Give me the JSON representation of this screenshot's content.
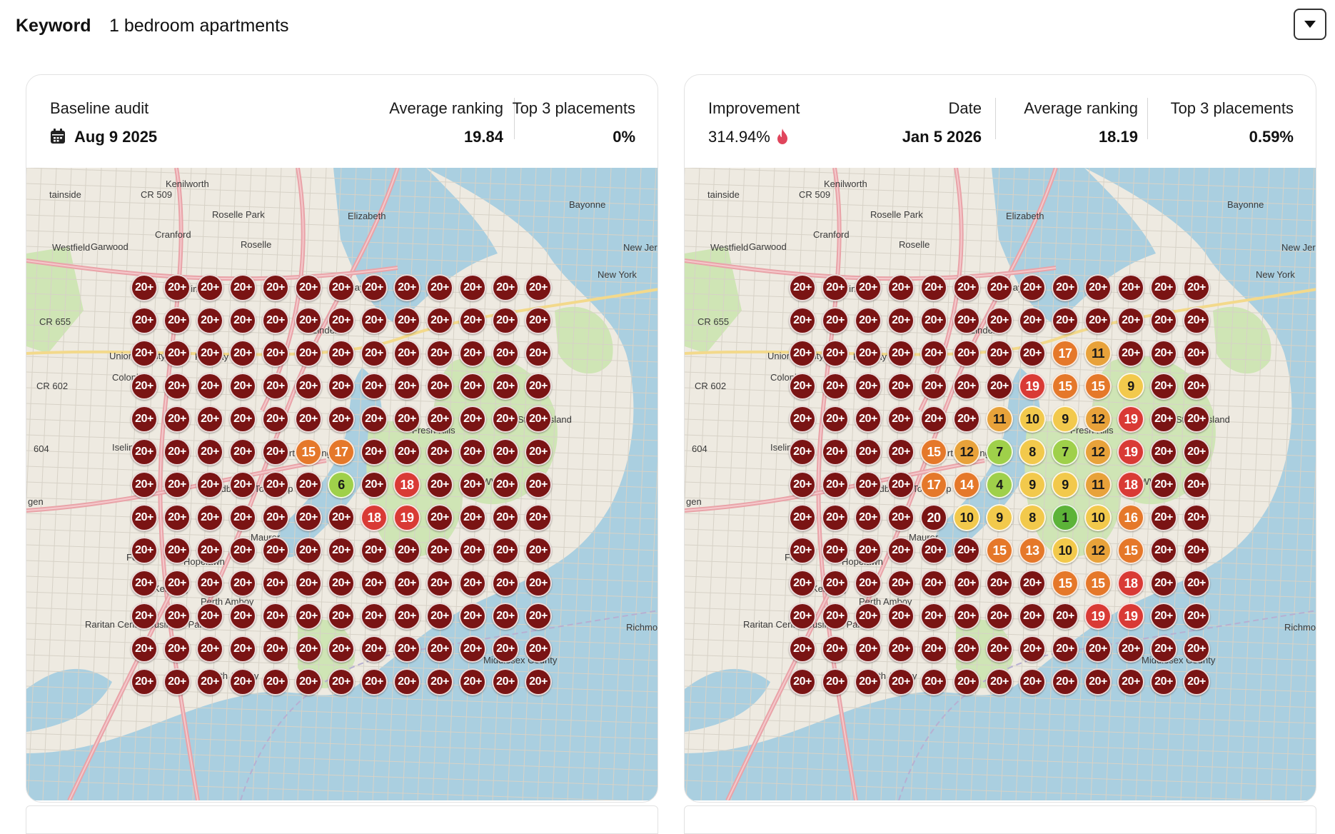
{
  "keyword": {
    "label": "Keyword",
    "value": "1 bedroom apartments"
  },
  "colors": {
    "r20": "#7a1414",
    "r18_19": "#d93a35",
    "r13_17": "#e5782a",
    "r11_12": "#e8a23a",
    "r8_10": "#f2c94c",
    "r4_7": "#9fd04a",
    "r1_3": "#5cb338",
    "water": "#aacfe0",
    "land": "#eeeae1",
    "park": "#cfe5b5"
  },
  "map_labels": [
    "Kenilworth",
    "Roselle Park",
    "Elizabeth",
    "Bayonne",
    "Cranford",
    "Roselle",
    "Westfield",
    "Garwood",
    "Winfield",
    "Clark",
    "Rahway",
    "Colonia",
    "Iselin",
    "Port Reading",
    "Woodbridge Township",
    "Staten Island",
    "Fresh Kills",
    "Maurer",
    "Fords",
    "Hopelawn",
    "Keasbey",
    "Perth Amboy",
    "South Amboy",
    "Raritan Center Business Park",
    "Union County",
    "Richmond County",
    "Middlesex County",
    "New Jersey",
    "New York",
    "CR 509",
    "CR 655",
    "CR 602",
    "604",
    "Bayway",
    "KWW",
    "Linden",
    "tainside",
    "gen"
  ],
  "baseline": {
    "title": "Baseline audit",
    "date": "Aug 9 2025",
    "avg_title": "Average ranking",
    "avg_value": "19.84",
    "top3_title": "Top 3 placements",
    "top3_value": "0%",
    "grid": [
      [
        "20+",
        "20+",
        "20+",
        "20+",
        "20+",
        "20+",
        "20+",
        "20+",
        "20+",
        "20+",
        "20+",
        "20+",
        "20+"
      ],
      [
        "20+",
        "20+",
        "20+",
        "20+",
        "20+",
        "20+",
        "20+",
        "20+",
        "20+",
        "20+",
        "20+",
        "20+",
        "20+"
      ],
      [
        "20+",
        "20+",
        "20+",
        "20+",
        "20+",
        "20+",
        "20+",
        "20+",
        "20+",
        "20+",
        "20+",
        "20+",
        "20+"
      ],
      [
        "20+",
        "20+",
        "20+",
        "20+",
        "20+",
        "20+",
        "20+",
        "20+",
        "20+",
        "20+",
        "20+",
        "20+",
        "20+"
      ],
      [
        "20+",
        "20+",
        "20+",
        "20+",
        "20+",
        "20+",
        "20+",
        "20+",
        "20+",
        "20+",
        "20+",
        "20+",
        "20+"
      ],
      [
        "20+",
        "20+",
        "20+",
        "20+",
        "20+",
        "15",
        "17",
        "20+",
        "20+",
        "20+",
        "20+",
        "20+",
        "20+"
      ],
      [
        "20+",
        "20+",
        "20+",
        "20+",
        "20+",
        "20+",
        "6",
        "20+",
        "18",
        "20+",
        "20+",
        "20+",
        "20+"
      ],
      [
        "20+",
        "20+",
        "20+",
        "20+",
        "20+",
        "20+",
        "20+",
        "18",
        "19",
        "20+",
        "20+",
        "20+",
        "20+"
      ],
      [
        "20+",
        "20+",
        "20+",
        "20+",
        "20+",
        "20+",
        "20+",
        "20+",
        "20+",
        "20+",
        "20+",
        "20+",
        "20+"
      ],
      [
        "20+",
        "20+",
        "20+",
        "20+",
        "20+",
        "20+",
        "20+",
        "20+",
        "20+",
        "20+",
        "20+",
        "20+",
        "20+"
      ],
      [
        "20+",
        "20+",
        "20+",
        "20+",
        "20+",
        "20+",
        "20+",
        "20+",
        "20+",
        "20+",
        "20+",
        "20+",
        "20+"
      ],
      [
        "20+",
        "20+",
        "20+",
        "20+",
        "20+",
        "20+",
        "20+",
        "20+",
        "20+",
        "20+",
        "20+",
        "20+",
        "20+"
      ],
      [
        "20+",
        "20+",
        "20+",
        "20+",
        "20+",
        "20+",
        "20+",
        "20+",
        "20+",
        "20+",
        "20+",
        "20+",
        "20+"
      ]
    ]
  },
  "current": {
    "improvement_title": "Improvement",
    "improvement_value": "314.94%",
    "improvement_icon": "flame-icon",
    "date_title": "Date",
    "date_value": "Jan 5 2026",
    "avg_title": "Average ranking",
    "avg_value": "18.19",
    "top3_title": "Top 3 placements",
    "top3_value": "0.59%",
    "grid": [
      [
        "20+",
        "20+",
        "20+",
        "20+",
        "20+",
        "20+",
        "20+",
        "20+",
        "20+",
        "20+",
        "20+",
        "20+",
        "20+"
      ],
      [
        "20+",
        "20+",
        "20+",
        "20+",
        "20+",
        "20+",
        "20+",
        "20+",
        "20+",
        "20+",
        "20+",
        "20+",
        "20+"
      ],
      [
        "20+",
        "20+",
        "20+",
        "20+",
        "20+",
        "20+",
        "20+",
        "20+",
        "17",
        "11",
        "20+",
        "20+",
        "20+"
      ],
      [
        "20+",
        "20+",
        "20+",
        "20+",
        "20+",
        "20+",
        "20+",
        "19",
        "15",
        "15",
        "9",
        "20+",
        "20+"
      ],
      [
        "20+",
        "20+",
        "20+",
        "20+",
        "20+",
        "20+",
        "11",
        "10",
        "9",
        "12",
        "19",
        "20+",
        "20+"
      ],
      [
        "20+",
        "20+",
        "20+",
        "20+",
        "15",
        "12",
        "7",
        "8",
        "7",
        "12",
        "19",
        "20+",
        "20+"
      ],
      [
        "20+",
        "20+",
        "20+",
        "20+",
        "17",
        "14",
        "4",
        "9",
        "9",
        "11",
        "18",
        "20+",
        "20+"
      ],
      [
        "20+",
        "20+",
        "20+",
        "20+",
        "20",
        "10",
        "9",
        "8",
        "1",
        "10",
        "16",
        "20+",
        "20+"
      ],
      [
        "20+",
        "20+",
        "20+",
        "20+",
        "20+",
        "20+",
        "15",
        "13",
        "10",
        "12",
        "15",
        "20+",
        "20+"
      ],
      [
        "20+",
        "20+",
        "20+",
        "20+",
        "20+",
        "20+",
        "20+",
        "20+",
        "15",
        "15",
        "18",
        "20+",
        "20+"
      ],
      [
        "20+",
        "20+",
        "20+",
        "20+",
        "20+",
        "20+",
        "20+",
        "20+",
        "20+",
        "19",
        "19",
        "20+",
        "20+"
      ],
      [
        "20+",
        "20+",
        "20+",
        "20+",
        "20+",
        "20+",
        "20+",
        "20+",
        "20+",
        "20+",
        "20+",
        "20+",
        "20+"
      ],
      [
        "20+",
        "20+",
        "20+",
        "20+",
        "20+",
        "20+",
        "20+",
        "20+",
        "20+",
        "20+",
        "20+",
        "20+",
        "20+"
      ]
    ]
  }
}
